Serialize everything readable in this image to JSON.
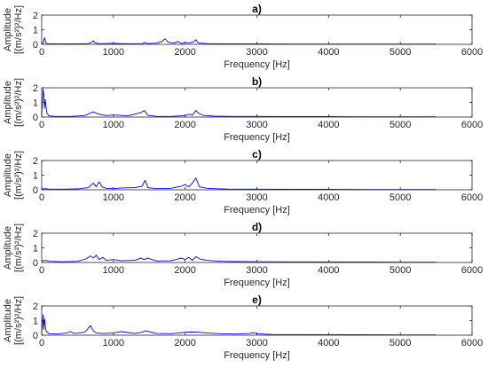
{
  "chart_data": [
    {
      "type": "line",
      "title": "a)",
      "xlabel": "Frequency [Hz]",
      "ylabel_line1": "Amplitude",
      "ylabel_line2": "[(m/s²)²/Hz]",
      "xlim": [
        0,
        6000
      ],
      "ylim": [
        0,
        2
      ],
      "xticks": [
        0,
        1000,
        2000,
        3000,
        4000,
        5000,
        6000
      ],
      "yticks": [
        0,
        1,
        2
      ],
      "color": "#0000ff",
      "series": [
        {
          "x": [
            0,
            20,
            40,
            60,
            100,
            300,
            500,
            650,
            700,
            720,
            740,
            800,
            1000,
            1200,
            1400,
            1440,
            1480,
            1600,
            1680,
            1720,
            1760,
            1850,
            1900,
            1950,
            2000,
            2050,
            2120,
            2150,
            2180,
            2300,
            2600,
            3000,
            3500,
            4000,
            4500,
            5000,
            5500
          ],
          "y": [
            0.05,
            0.1,
            0.45,
            0.08,
            0.03,
            0.03,
            0.03,
            0.05,
            0.15,
            0.25,
            0.1,
            0.04,
            0.06,
            0.04,
            0.05,
            0.12,
            0.05,
            0.08,
            0.2,
            0.38,
            0.15,
            0.08,
            0.2,
            0.05,
            0.15,
            0.08,
            0.18,
            0.32,
            0.1,
            0.05,
            0.03,
            0.03,
            0.02,
            0.02,
            0.02,
            0.02,
            0.02
          ]
        }
      ]
    },
    {
      "type": "line",
      "title": "b)",
      "xlabel": "Frequency [Hz]",
      "ylabel_line1": "Amplitude",
      "ylabel_line2": "[(m/s²)²/Hz]",
      "xlim": [
        0,
        6000
      ],
      "ylim": [
        0,
        2
      ],
      "xticks": [
        0,
        1000,
        2000,
        3000,
        4000,
        5000,
        6000
      ],
      "yticks": [
        0,
        1,
        2
      ],
      "color": "#0000ff",
      "series": [
        {
          "x": [
            0,
            20,
            30,
            40,
            50,
            70,
            100,
            200,
            400,
            600,
            680,
            720,
            780,
            900,
            1000,
            1200,
            1380,
            1430,
            1480,
            1600,
            1800,
            2000,
            2060,
            2100,
            2150,
            2180,
            2250,
            2400,
            2700,
            3000,
            3500,
            4000,
            4500,
            5000,
            5500
          ],
          "y": [
            0.1,
            1.9,
            1.5,
            0.6,
            1.2,
            0.3,
            0.08,
            0.04,
            0.04,
            0.1,
            0.28,
            0.35,
            0.22,
            0.1,
            0.15,
            0.08,
            0.3,
            0.45,
            0.12,
            0.05,
            0.04,
            0.1,
            0.2,
            0.12,
            0.45,
            0.28,
            0.12,
            0.06,
            0.04,
            0.04,
            0.03,
            0.03,
            0.02,
            0.02,
            0.02
          ]
        }
      ]
    },
    {
      "type": "line",
      "title": "c)",
      "xlabel": "Frequency [Hz]",
      "ylabel_line1": "Amplitude",
      "ylabel_line2": "[(m/s²)²/Hz]",
      "xlim": [
        0,
        6000
      ],
      "ylim": [
        0,
        2
      ],
      "xticks": [
        0,
        1000,
        2000,
        3000,
        4000,
        5000,
        6000
      ],
      "yticks": [
        0,
        1,
        2
      ],
      "color": "#0000ff",
      "series": [
        {
          "x": [
            0,
            50,
            100,
            300,
            500,
            650,
            720,
            760,
            800,
            840,
            900,
            1000,
            1100,
            1300,
            1400,
            1440,
            1480,
            1600,
            1800,
            1950,
            2000,
            2050,
            2100,
            2150,
            2200,
            2300,
            2400,
            2600,
            3000,
            3500,
            4000,
            4500,
            5000,
            5500
          ],
          "y": [
            0.05,
            0.08,
            0.05,
            0.04,
            0.06,
            0.15,
            0.45,
            0.2,
            0.55,
            0.2,
            0.1,
            0.08,
            0.12,
            0.15,
            0.25,
            0.65,
            0.15,
            0.08,
            0.1,
            0.25,
            0.35,
            0.2,
            0.45,
            0.8,
            0.2,
            0.1,
            0.08,
            0.05,
            0.04,
            0.03,
            0.03,
            0.02,
            0.02,
            0.02
          ]
        }
      ]
    },
    {
      "type": "line",
      "title": "d)",
      "xlabel": "Frequency [Hz]",
      "ylabel_line1": "Amplitude",
      "ylabel_line2": "[(m/s²)²/Hz]",
      "xlim": [
        0,
        6000
      ],
      "ylim": [
        0,
        2
      ],
      "xticks": [
        0,
        1000,
        2000,
        3000,
        4000,
        5000,
        6000
      ],
      "yticks": [
        0,
        1,
        2
      ],
      "color": "#0000ff",
      "series": [
        {
          "x": [
            0,
            50,
            100,
            300,
            500,
            620,
            680,
            720,
            760,
            800,
            850,
            900,
            1000,
            1100,
            1300,
            1380,
            1430,
            1480,
            1600,
            1800,
            1950,
            2000,
            2050,
            2100,
            2150,
            2200,
            2300,
            2500,
            2700,
            3000,
            3500,
            4000,
            4500,
            5000,
            5500
          ],
          "y": [
            0.1,
            0.15,
            0.08,
            0.05,
            0.08,
            0.25,
            0.45,
            0.3,
            0.5,
            0.2,
            0.35,
            0.15,
            0.2,
            0.12,
            0.15,
            0.3,
            0.2,
            0.3,
            0.1,
            0.12,
            0.3,
            0.2,
            0.35,
            0.15,
            0.4,
            0.25,
            0.15,
            0.08,
            0.06,
            0.05,
            0.04,
            0.03,
            0.03,
            0.02,
            0.02
          ]
        }
      ]
    },
    {
      "type": "line",
      "title": "e)",
      "xlabel": "Frequency [Hz]",
      "ylabel_line1": "Amplitude",
      "ylabel_line2": "[(m/s²)²/Hz]",
      "xlim": [
        0,
        6000
      ],
      "ylim": [
        0,
        2
      ],
      "xticks": [
        0,
        1000,
        2000,
        3000,
        4000,
        5000,
        6000
      ],
      "yticks": [
        0,
        1,
        2
      ],
      "color": "#0000ff",
      "series": [
        {
          "x": [
            0,
            20,
            30,
            40,
            60,
            100,
            200,
            350,
            400,
            450,
            600,
            680,
            720,
            760,
            850,
            1000,
            1100,
            1300,
            1400,
            1450,
            1600,
            1800,
            1900,
            2000,
            2100,
            2200,
            2300,
            2500,
            2700,
            2900,
            2950,
            3000,
            3200,
            3500,
            4000,
            4500,
            5000,
            5500
          ],
          "y": [
            0.1,
            1.4,
            0.4,
            1.1,
            0.3,
            0.1,
            0.08,
            0.15,
            0.25,
            0.12,
            0.2,
            0.65,
            0.3,
            0.15,
            0.12,
            0.15,
            0.25,
            0.12,
            0.2,
            0.3,
            0.12,
            0.1,
            0.15,
            0.2,
            0.22,
            0.2,
            0.15,
            0.1,
            0.08,
            0.12,
            0.18,
            0.1,
            0.05,
            0.04,
            0.03,
            0.03,
            0.02,
            0.02
          ]
        }
      ]
    }
  ]
}
